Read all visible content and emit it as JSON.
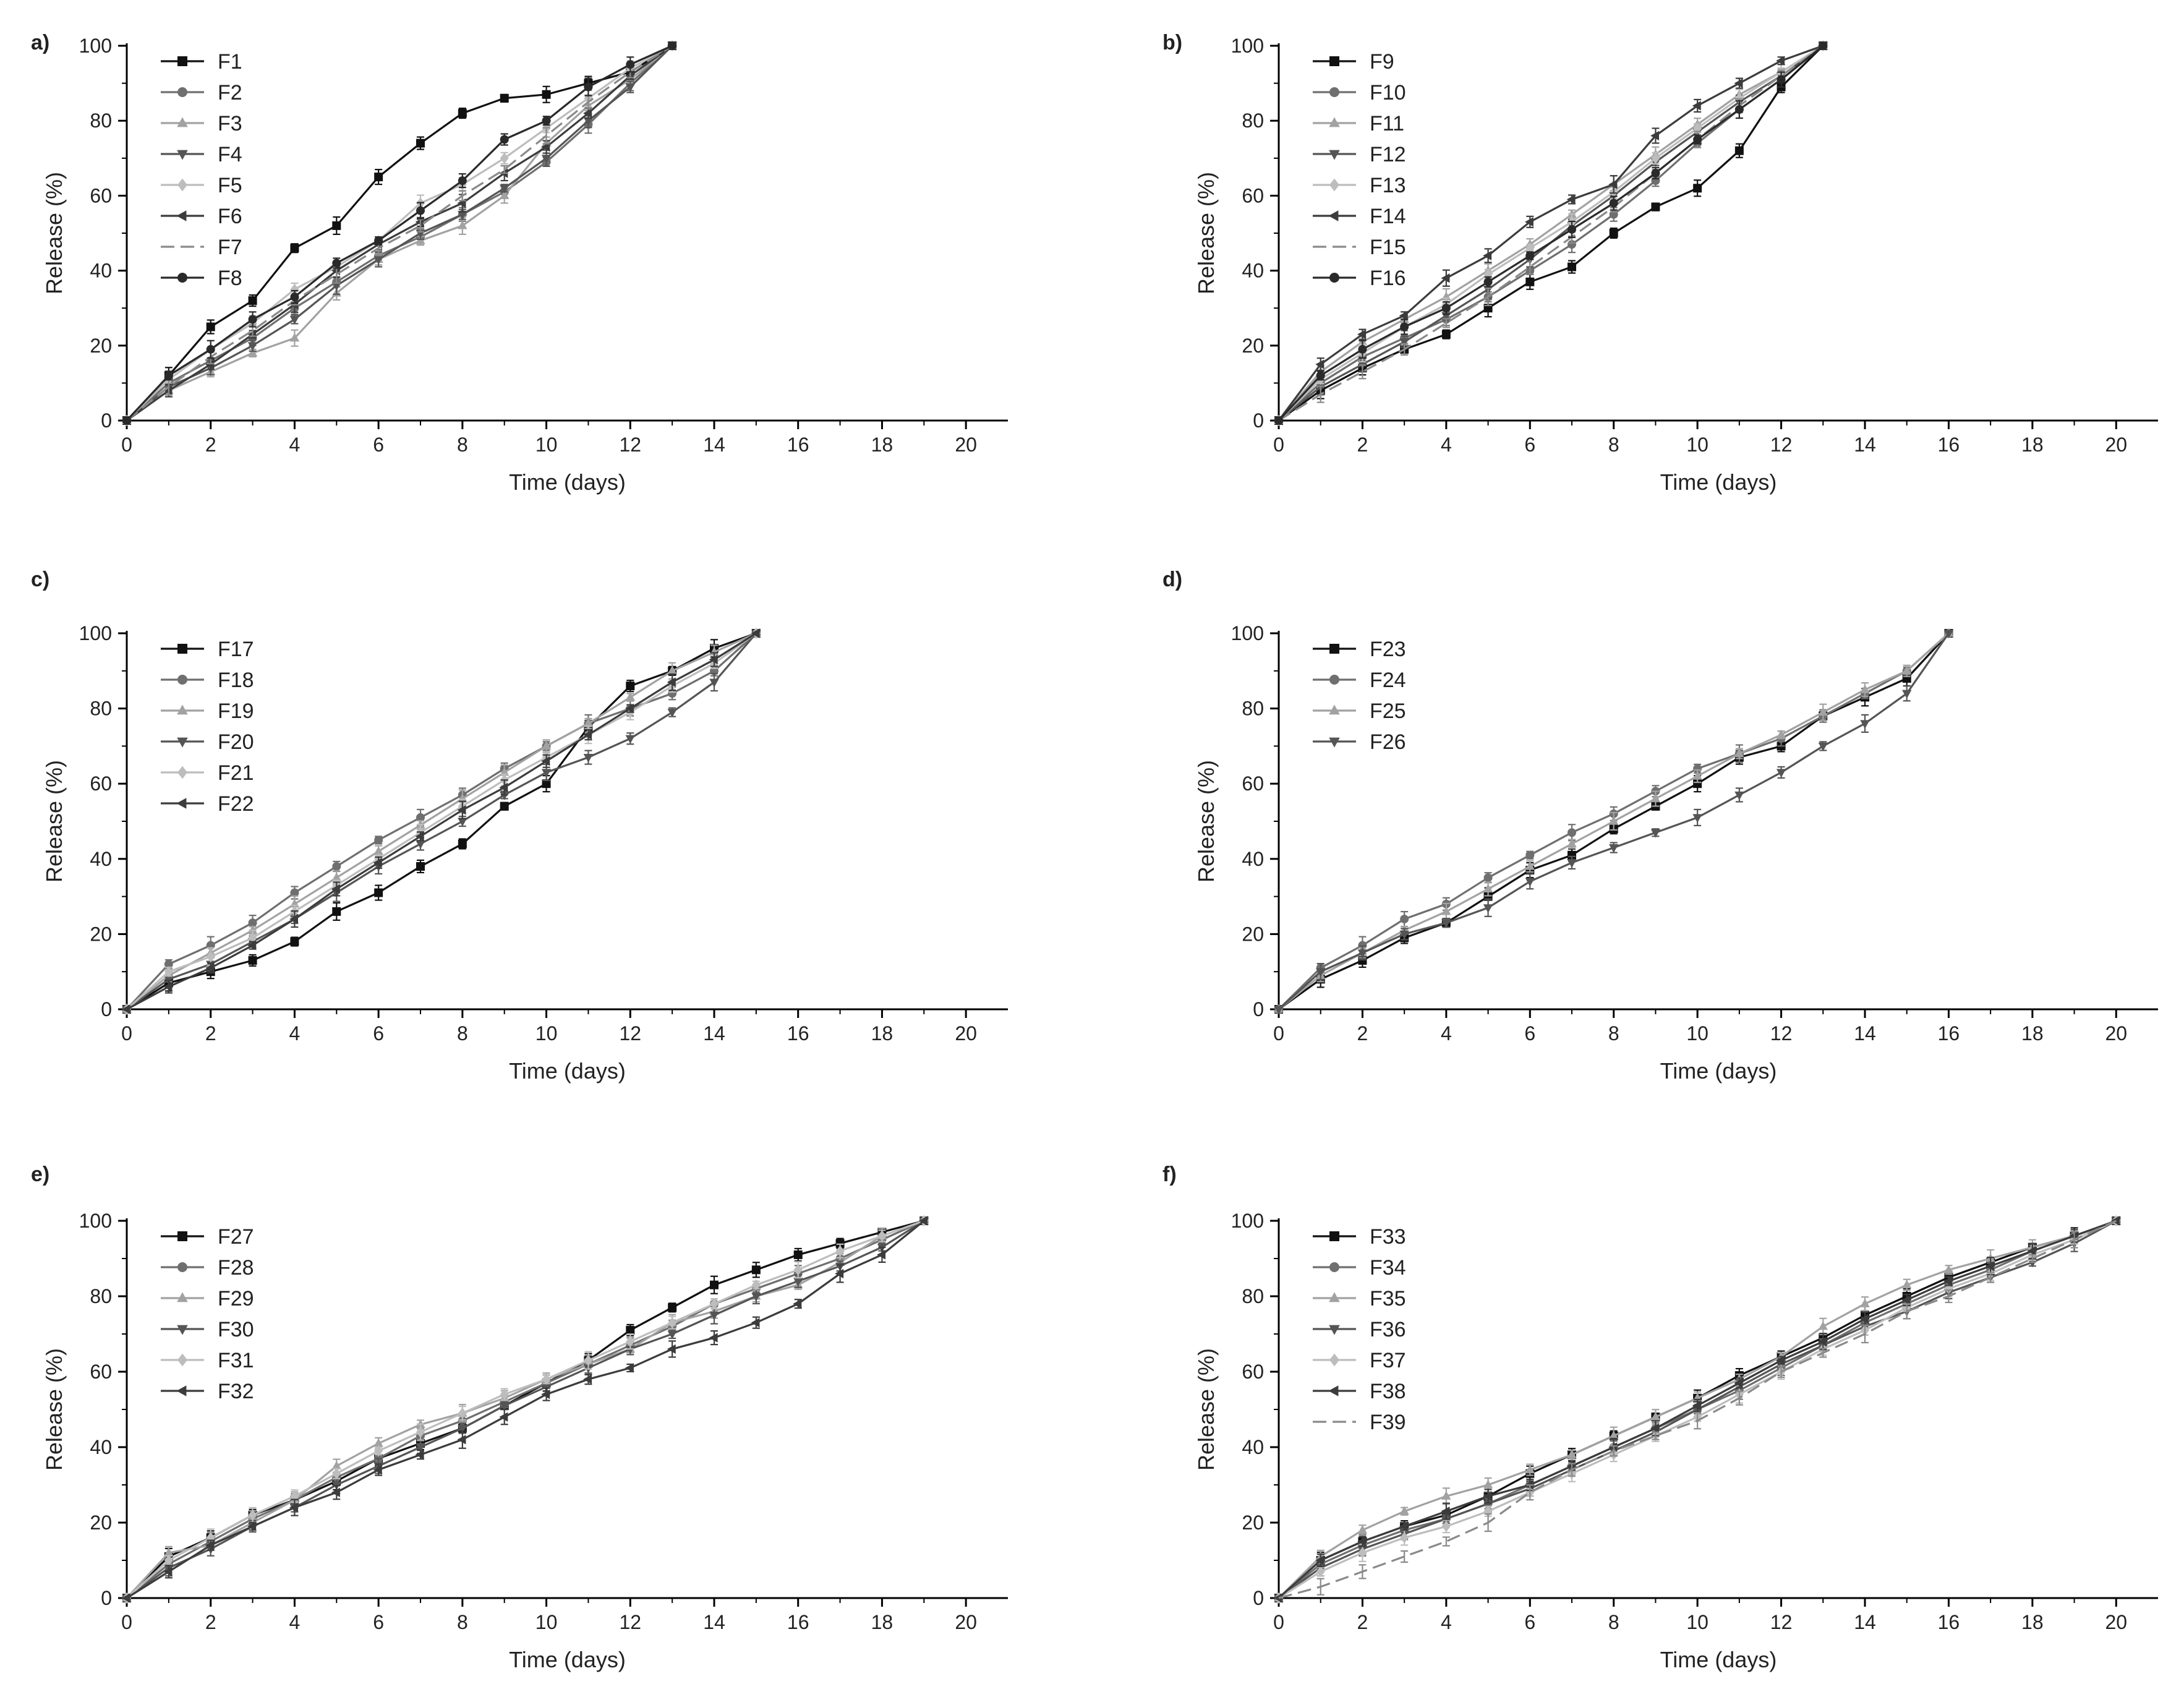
{
  "figure_style": {
    "axis_color": "#000000",
    "series_colors": [
      "#111111",
      "#6f6f6f",
      "#a2a2a2",
      "#555555",
      "#bdbdbd",
      "#3c3c3c",
      "#8a8a8a",
      "#2a2a2a"
    ],
    "marker_cycle": [
      "square",
      "circle",
      "triangle-up",
      "triangle-down",
      "diamond",
      "triangle-left",
      "none",
      "circle"
    ]
  },
  "chart_data": [
    {
      "panel": "a)",
      "type": "line",
      "xlabel": "Time (days)",
      "ylabel": "Release (%)",
      "xlim": [
        0,
        21
      ],
      "ylim": [
        0,
        100
      ],
      "xticks": [
        0,
        2,
        4,
        6,
        8,
        10,
        12,
        14,
        16,
        18,
        20
      ],
      "yticks": [
        0,
        20,
        40,
        60,
        80,
        100
      ],
      "x": [
        0,
        1,
        2,
        3,
        4,
        5,
        6,
        7,
        8,
        9,
        10,
        11,
        12,
        13
      ],
      "series": [
        {
          "name": "F1",
          "values": [
            0,
            12,
            25,
            32,
            46,
            52,
            65,
            74,
            82,
            86,
            87,
            90,
            93,
            100
          ]
        },
        {
          "name": "F2",
          "values": [
            0,
            10,
            16,
            22,
            30,
            37,
            44,
            49,
            55,
            61,
            69,
            79,
            90,
            100
          ]
        },
        {
          "name": "F3",
          "values": [
            0,
            8,
            13,
            18,
            22,
            34,
            43,
            48,
            52,
            60,
            74,
            84,
            91,
            100
          ]
        },
        {
          "name": "F4",
          "values": [
            0,
            9,
            14,
            20,
            27,
            36,
            43,
            50,
            55,
            62,
            70,
            80,
            89,
            100
          ]
        },
        {
          "name": "F5",
          "values": [
            0,
            11,
            19,
            26,
            35,
            41,
            48,
            58,
            63,
            70,
            78,
            86,
            94,
            100
          ]
        },
        {
          "name": "F6",
          "values": [
            0,
            8,
            15,
            23,
            31,
            40,
            47,
            53,
            58,
            66,
            73,
            82,
            92,
            100
          ]
        },
        {
          "name": "F7",
          "values": [
            0,
            9,
            17,
            24,
            32,
            39,
            46,
            52,
            60,
            67,
            76,
            85,
            93,
            100
          ]
        },
        {
          "name": "F8",
          "values": [
            0,
            12,
            19,
            27,
            33,
            42,
            48,
            56,
            64,
            75,
            80,
            89,
            95,
            100
          ]
        }
      ]
    },
    {
      "panel": "b)",
      "type": "line",
      "xlabel": "Time (days)",
      "ylabel": "Release (%)",
      "xlim": [
        0,
        21
      ],
      "ylim": [
        0,
        100
      ],
      "xticks": [
        0,
        2,
        4,
        6,
        8,
        10,
        12,
        14,
        16,
        18,
        20
      ],
      "yticks": [
        0,
        20,
        40,
        60,
        80,
        100
      ],
      "x": [
        0,
        1,
        2,
        3,
        4,
        5,
        6,
        7,
        8,
        9,
        10,
        11,
        12,
        13
      ],
      "series": [
        {
          "name": "F9",
          "values": [
            0,
            8,
            14,
            19,
            23,
            30,
            37,
            41,
            50,
            57,
            62,
            72,
            89,
            100
          ]
        },
        {
          "name": "F10",
          "values": [
            0,
            10,
            17,
            22,
            27,
            33,
            40,
            47,
            55,
            64,
            74,
            83,
            91,
            100
          ]
        },
        {
          "name": "F11",
          "values": [
            0,
            13,
            21,
            27,
            33,
            40,
            47,
            55,
            63,
            71,
            79,
            87,
            93,
            100
          ]
        },
        {
          "name": "F12",
          "values": [
            0,
            9,
            15,
            21,
            28,
            35,
            43,
            52,
            60,
            69,
            77,
            85,
            92,
            100
          ]
        },
        {
          "name": "F13",
          "values": [
            0,
            11,
            18,
            25,
            31,
            39,
            46,
            53,
            61,
            70,
            78,
            86,
            93,
            100
          ]
        },
        {
          "name": "F14",
          "values": [
            0,
            15,
            23,
            28,
            38,
            44,
            53,
            59,
            63,
            76,
            84,
            90,
            96,
            100
          ]
        },
        {
          "name": "F15",
          "values": [
            0,
            7,
            13,
            19,
            26,
            33,
            41,
            49,
            57,
            66,
            75,
            84,
            92,
            100
          ]
        },
        {
          "name": "F16",
          "values": [
            0,
            12,
            19,
            25,
            30,
            37,
            44,
            51,
            58,
            66,
            75,
            83,
            91,
            100
          ]
        }
      ]
    },
    {
      "panel": "c)",
      "type": "line",
      "xlabel": "Time (days)",
      "ylabel": "Release (%)",
      "xlim": [
        0,
        21
      ],
      "ylim": [
        0,
        100
      ],
      "xticks": [
        0,
        2,
        4,
        6,
        8,
        10,
        12,
        14,
        16,
        18,
        20
      ],
      "yticks": [
        0,
        20,
        40,
        60,
        80,
        100
      ],
      "x": [
        0,
        1,
        2,
        3,
        4,
        5,
        6,
        7,
        8,
        9,
        10,
        11,
        12,
        13,
        14,
        15
      ],
      "series": [
        {
          "name": "F17",
          "values": [
            0,
            7,
            10,
            13,
            18,
            26,
            31,
            38,
            44,
            54,
            60,
            75,
            86,
            90,
            96,
            100
          ]
        },
        {
          "name": "F18",
          "values": [
            0,
            12,
            17,
            23,
            31,
            38,
            45,
            51,
            57,
            64,
            70,
            76,
            80,
            84,
            90,
            100
          ]
        },
        {
          "name": "F19",
          "values": [
            0,
            9,
            15,
            21,
            28,
            35,
            42,
            49,
            56,
            63,
            70,
            76,
            83,
            90,
            95,
            100
          ]
        },
        {
          "name": "F20",
          "values": [
            0,
            8,
            12,
            18,
            24,
            31,
            38,
            44,
            50,
            57,
            63,
            67,
            72,
            79,
            87,
            100
          ]
        },
        {
          "name": "F21",
          "values": [
            0,
            10,
            14,
            19,
            26,
            33,
            40,
            47,
            54,
            61,
            67,
            73,
            79,
            86,
            92,
            100
          ]
        },
        {
          "name": "F22",
          "values": [
            0,
            6,
            11,
            17,
            24,
            32,
            39,
            46,
            53,
            59,
            66,
            73,
            80,
            87,
            93,
            100
          ]
        }
      ]
    },
    {
      "panel": "d)",
      "type": "line",
      "xlabel": "Time (days)",
      "ylabel": "Release (%)",
      "xlim": [
        0,
        21
      ],
      "ylim": [
        0,
        100
      ],
      "xticks": [
        0,
        2,
        4,
        6,
        8,
        10,
        12,
        14,
        16,
        18,
        20
      ],
      "yticks": [
        0,
        20,
        40,
        60,
        80,
        100
      ],
      "x": [
        0,
        1,
        2,
        3,
        4,
        5,
        6,
        7,
        8,
        9,
        10,
        11,
        12,
        13,
        14,
        15,
        16
      ],
      "series": [
        {
          "name": "F23",
          "values": [
            0,
            8,
            13,
            19,
            23,
            30,
            37,
            41,
            48,
            54,
            60,
            67,
            70,
            78,
            83,
            88,
            100
          ]
        },
        {
          "name": "F24",
          "values": [
            0,
            11,
            17,
            24,
            28,
            35,
            41,
            47,
            52,
            58,
            64,
            68,
            72,
            78,
            84,
            90,
            100
          ]
        },
        {
          "name": "F25",
          "values": [
            0,
            9,
            15,
            21,
            26,
            32,
            38,
            44,
            50,
            56,
            62,
            68,
            73,
            79,
            85,
            90,
            100
          ]
        },
        {
          "name": "F26",
          "values": [
            0,
            10,
            15,
            20,
            23,
            27,
            34,
            39,
            43,
            47,
            51,
            57,
            63,
            70,
            76,
            84,
            100
          ]
        }
      ]
    },
    {
      "panel": "e)",
      "type": "line",
      "xlabel": "Time (days)",
      "ylabel": "Release (%)",
      "xlim": [
        0,
        21
      ],
      "ylim": [
        0,
        100
      ],
      "xticks": [
        0,
        2,
        4,
        6,
        8,
        10,
        12,
        14,
        16,
        18,
        20
      ],
      "yticks": [
        0,
        20,
        40,
        60,
        80,
        100
      ],
      "x": [
        0,
        1,
        2,
        3,
        4,
        5,
        6,
        7,
        8,
        9,
        10,
        11,
        12,
        13,
        14,
        15,
        16,
        17,
        18,
        19
      ],
      "series": [
        {
          "name": "F27",
          "values": [
            0,
            11,
            16,
            22,
            26,
            31,
            37,
            41,
            45,
            51,
            57,
            63,
            71,
            77,
            83,
            87,
            91,
            94,
            97,
            100
          ]
        },
        {
          "name": "F28",
          "values": [
            0,
            9,
            15,
            21,
            26,
            32,
            37,
            43,
            47,
            52,
            57,
            62,
            67,
            72,
            78,
            82,
            86,
            90,
            95,
            100
          ]
        },
        {
          "name": "F29",
          "values": [
            0,
            12,
            14,
            20,
            26,
            35,
            41,
            46,
            49,
            53,
            58,
            62,
            66,
            73,
            76,
            80,
            83,
            89,
            96,
            100
          ]
        },
        {
          "name": "F30",
          "values": [
            0,
            8,
            13,
            19,
            24,
            30,
            35,
            40,
            45,
            51,
            56,
            61,
            66,
            70,
            75,
            80,
            84,
            88,
            93,
            100
          ]
        },
        {
          "name": "F31",
          "values": [
            0,
            10,
            16,
            22,
            27,
            33,
            39,
            44,
            49,
            54,
            58,
            63,
            68,
            73,
            78,
            83,
            87,
            92,
            96,
            100
          ]
        },
        {
          "name": "F32",
          "values": [
            0,
            7,
            14,
            19,
            24,
            28,
            34,
            38,
            42,
            48,
            54,
            58,
            61,
            66,
            69,
            73,
            78,
            86,
            91,
            100
          ]
        }
      ]
    },
    {
      "panel": "f)",
      "type": "line",
      "xlabel": "Time (days)",
      "ylabel": "Release (%)",
      "xlim": [
        0,
        21
      ],
      "ylim": [
        0,
        100
      ],
      "xticks": [
        0,
        2,
        4,
        6,
        8,
        10,
        12,
        14,
        16,
        18,
        20
      ],
      "yticks": [
        0,
        20,
        40,
        60,
        80,
        100
      ],
      "x": [
        0,
        1,
        2,
        3,
        4,
        5,
        6,
        7,
        8,
        9,
        10,
        11,
        12,
        13,
        14,
        15,
        16,
        17,
        18,
        19,
        20
      ],
      "series": [
        {
          "name": "F33",
          "values": [
            0,
            10,
            15,
            19,
            22,
            27,
            33,
            38,
            43,
            48,
            53,
            59,
            64,
            69,
            75,
            80,
            85,
            89,
            93,
            96,
            100
          ]
        },
        {
          "name": "F34",
          "values": [
            0,
            9,
            14,
            18,
            21,
            25,
            30,
            35,
            40,
            45,
            50,
            55,
            61,
            67,
            73,
            78,
            83,
            87,
            92,
            96,
            100
          ]
        },
        {
          "name": "F35",
          "values": [
            0,
            11,
            18,
            23,
            27,
            30,
            34,
            38,
            43,
            48,
            53,
            58,
            64,
            72,
            78,
            83,
            87,
            90,
            93,
            96,
            100
          ]
        },
        {
          "name": "F36",
          "values": [
            0,
            8,
            13,
            17,
            21,
            25,
            29,
            34,
            39,
            44,
            50,
            56,
            62,
            67,
            72,
            76,
            81,
            85,
            89,
            94,
            100
          ]
        },
        {
          "name": "F37",
          "values": [
            0,
            7,
            12,
            16,
            19,
            23,
            28,
            33,
            38,
            43,
            48,
            54,
            60,
            66,
            71,
            77,
            82,
            86,
            91,
            95,
            100
          ]
        },
        {
          "name": "F38",
          "values": [
            0,
            10,
            15,
            19,
            23,
            27,
            30,
            35,
            40,
            45,
            51,
            57,
            63,
            68,
            74,
            79,
            84,
            88,
            92,
            96,
            100
          ]
        },
        {
          "name": "F39",
          "values": [
            0,
            3,
            7,
            11,
            15,
            20,
            28,
            34,
            39,
            43,
            47,
            53,
            60,
            65,
            70,
            76,
            80,
            85,
            90,
            95,
            100
          ]
        }
      ]
    }
  ]
}
